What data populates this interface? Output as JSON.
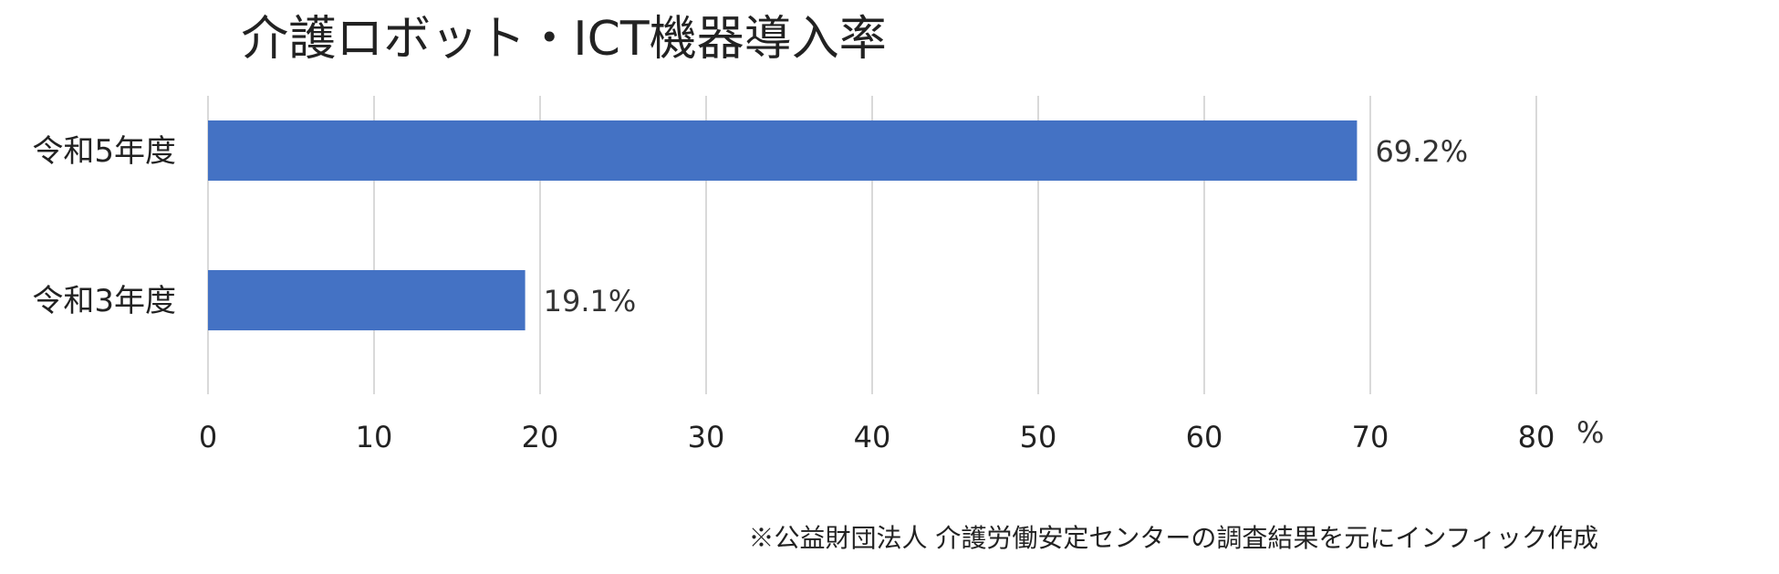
{
  "chart_data": {
    "type": "bar",
    "orientation": "horizontal",
    "title": "介護ロボット・ICT機器導入率",
    "categories": [
      "令和5年度",
      "令和3年度"
    ],
    "values": [
      69.2,
      19.1
    ],
    "data_labels": [
      "69.2%",
      "19.1%"
    ],
    "xlim": [
      0,
      80
    ],
    "xticks": [
      0,
      10,
      20,
      30,
      40,
      50,
      60,
      70,
      80
    ],
    "x_unit": "%",
    "grid": "vertical",
    "bar_color": "#4472C4",
    "legend": "none"
  },
  "source_note": "※公益財団法人 介護労働安定センターの調査結果を元にインフィック作成"
}
